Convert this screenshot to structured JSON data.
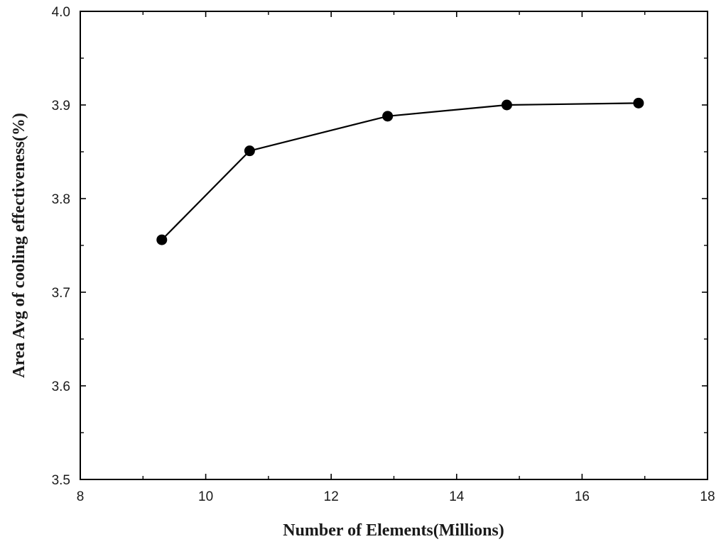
{
  "chart_data": {
    "type": "line",
    "xlabel": "Number of Elements(Millions)",
    "ylabel": "Area Avg of cooling effectiveness(%)",
    "xlim": [
      8,
      18
    ],
    "ylim": [
      3.5,
      4.0
    ],
    "x_ticks": [
      "8",
      "10",
      "12",
      "14",
      "16",
      "18"
    ],
    "y_ticks": [
      "3.5",
      "3.6",
      "3.7",
      "3.8",
      "3.9",
      "4.0"
    ],
    "grid": false,
    "series": [
      {
        "x": [
          9.3,
          10.7,
          12.9,
          14.8,
          16.9
        ],
        "values": [
          3.756,
          3.851,
          3.888,
          3.9,
          3.902
        ],
        "color": "#000000",
        "marker": "filled-circle"
      }
    ]
  }
}
